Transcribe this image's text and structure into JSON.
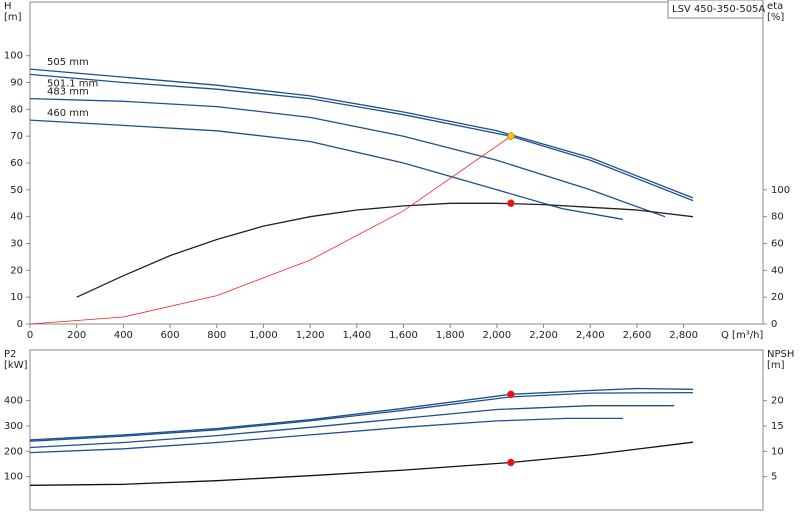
{
  "chart_data": [
    {
      "type": "line",
      "title": "LSV 450-350-505A",
      "ylabel": [
        "H",
        "[m]"
      ],
      "y2label": [
        "eta",
        "[%]"
      ],
      "xlabel": "Q [m³/h]",
      "xlim": [
        0,
        3140
      ],
      "ylim": [
        0,
        120
      ],
      "y2lim": [
        0,
        240
      ],
      "xticks": [
        0,
        200,
        400,
        600,
        800,
        {
          "value": 1000,
          "label": "1,000"
        },
        {
          "value": 1200,
          "label": "1,200"
        },
        {
          "value": 1400,
          "label": "1,400"
        },
        {
          "value": 1600,
          "label": "1,600"
        },
        {
          "value": 1800,
          "label": "1,800"
        },
        {
          "value": 2000,
          "label": "2,000"
        },
        {
          "value": 2200,
          "label": "2,200"
        },
        {
          "value": 2400,
          "label": "2,400"
        },
        {
          "value": 2600,
          "label": "2,600"
        },
        {
          "value": 2800,
          "label": "2,800"
        }
      ],
      "yticks": [
        0,
        10,
        20,
        30,
        40,
        50,
        60,
        70,
        80,
        90,
        100
      ],
      "y2ticks": [
        0,
        20,
        40,
        60,
        80,
        100
      ],
      "series": [
        {
          "name": "505 mm",
          "color": "#1f4f8f",
          "x": [
            0,
            400,
            800,
            1200,
            1600,
            2000,
            2400,
            2840
          ],
          "values": [
            95,
            92,
            89,
            85,
            79,
            72,
            62,
            47
          ]
        },
        {
          "name": "501.1 mm",
          "color": "#1f4f8f",
          "x": [
            0,
            400,
            800,
            1200,
            1600,
            2060,
            2400,
            2840
          ],
          "values": [
            93,
            90,
            87.5,
            84,
            78,
            70,
            61,
            46
          ]
        },
        {
          "name": "483 mm",
          "color": "#1f4f8f",
          "x": [
            0,
            400,
            800,
            1200,
            1600,
            2000,
            2400,
            2720
          ],
          "values": [
            84,
            83,
            81,
            77,
            70,
            61,
            50,
            40
          ]
        },
        {
          "name": "460 mm",
          "color": "#1f4f8f",
          "x": [
            0,
            400,
            800,
            1200,
            1600,
            2000,
            2280,
            2540
          ],
          "values": [
            76,
            74,
            72,
            68,
            60,
            50,
            43,
            39
          ]
        },
        {
          "color": "#222222",
          "axis": "y2",
          "x": [
            200,
            400,
            600,
            800,
            1000,
            1200,
            1400,
            1600,
            1800,
            2000,
            2200,
            2400,
            2600,
            2840
          ],
          "values": [
            20,
            36,
            51,
            63,
            73,
            80,
            85,
            88,
            90,
            90,
            89,
            87,
            85,
            80
          ]
        },
        {
          "color": "#ff2020",
          "x": [
            0,
            400,
            800,
            1200,
            1600,
            2060
          ],
          "values": [
            0,
            2.6,
            10.6,
            23.8,
            42.2,
            70
          ]
        }
      ],
      "points": [
        {
          "x": 2060,
          "y": 70,
          "color": "#f5c400"
        },
        {
          "x": 2060,
          "y": 90,
          "color": "#ee1111",
          "axis": "y2"
        }
      ]
    },
    {
      "type": "line",
      "ylabel": [
        "P2",
        "[kW]"
      ],
      "y2label": [
        "NPSH",
        "[m]"
      ],
      "xlim": [
        0,
        3140
      ],
      "ylim": [
        0,
        600
      ],
      "y2lim": [
        0,
        30
      ],
      "yticks": [
        100,
        200,
        300,
        400
      ],
      "y2ticks": [
        5,
        10,
        15,
        20
      ],
      "series": [
        {
          "color": "#1f4f8f",
          "x": [
            0,
            400,
            800,
            1200,
            1600,
            2060,
            2400,
            2600,
            2840
          ],
          "values": [
            245,
            265,
            290,
            325,
            370,
            425,
            440,
            448,
            445
          ]
        },
        {
          "color": "#1f4f8f",
          "x": [
            0,
            400,
            800,
            1200,
            1600,
            2060,
            2400,
            2840
          ],
          "values": [
            240,
            260,
            285,
            320,
            362,
            415,
            430,
            432
          ]
        },
        {
          "color": "#1f4f8f",
          "x": [
            0,
            400,
            800,
            1200,
            1600,
            2000,
            2400,
            2760
          ],
          "values": [
            215,
            235,
            262,
            295,
            330,
            365,
            380,
            380
          ]
        },
        {
          "color": "#1f4f8f",
          "x": [
            0,
            400,
            800,
            1200,
            1600,
            2000,
            2300,
            2540
          ],
          "values": [
            195,
            210,
            235,
            265,
            295,
            320,
            330,
            330
          ]
        },
        {
          "color": "#111111",
          "axis": "y2",
          "x": [
            0,
            400,
            800,
            1200,
            1600,
            2060,
            2400,
            2840
          ],
          "values": [
            3.3,
            3.5,
            4.2,
            5.2,
            6.3,
            7.8,
            9.3,
            11.8
          ]
        }
      ],
      "points": [
        {
          "x": 2060,
          "y": 425,
          "color": "#ee1111"
        },
        {
          "x": 2060,
          "y": 7.8,
          "color": "#ee1111",
          "axis": "y2"
        }
      ]
    }
  ]
}
